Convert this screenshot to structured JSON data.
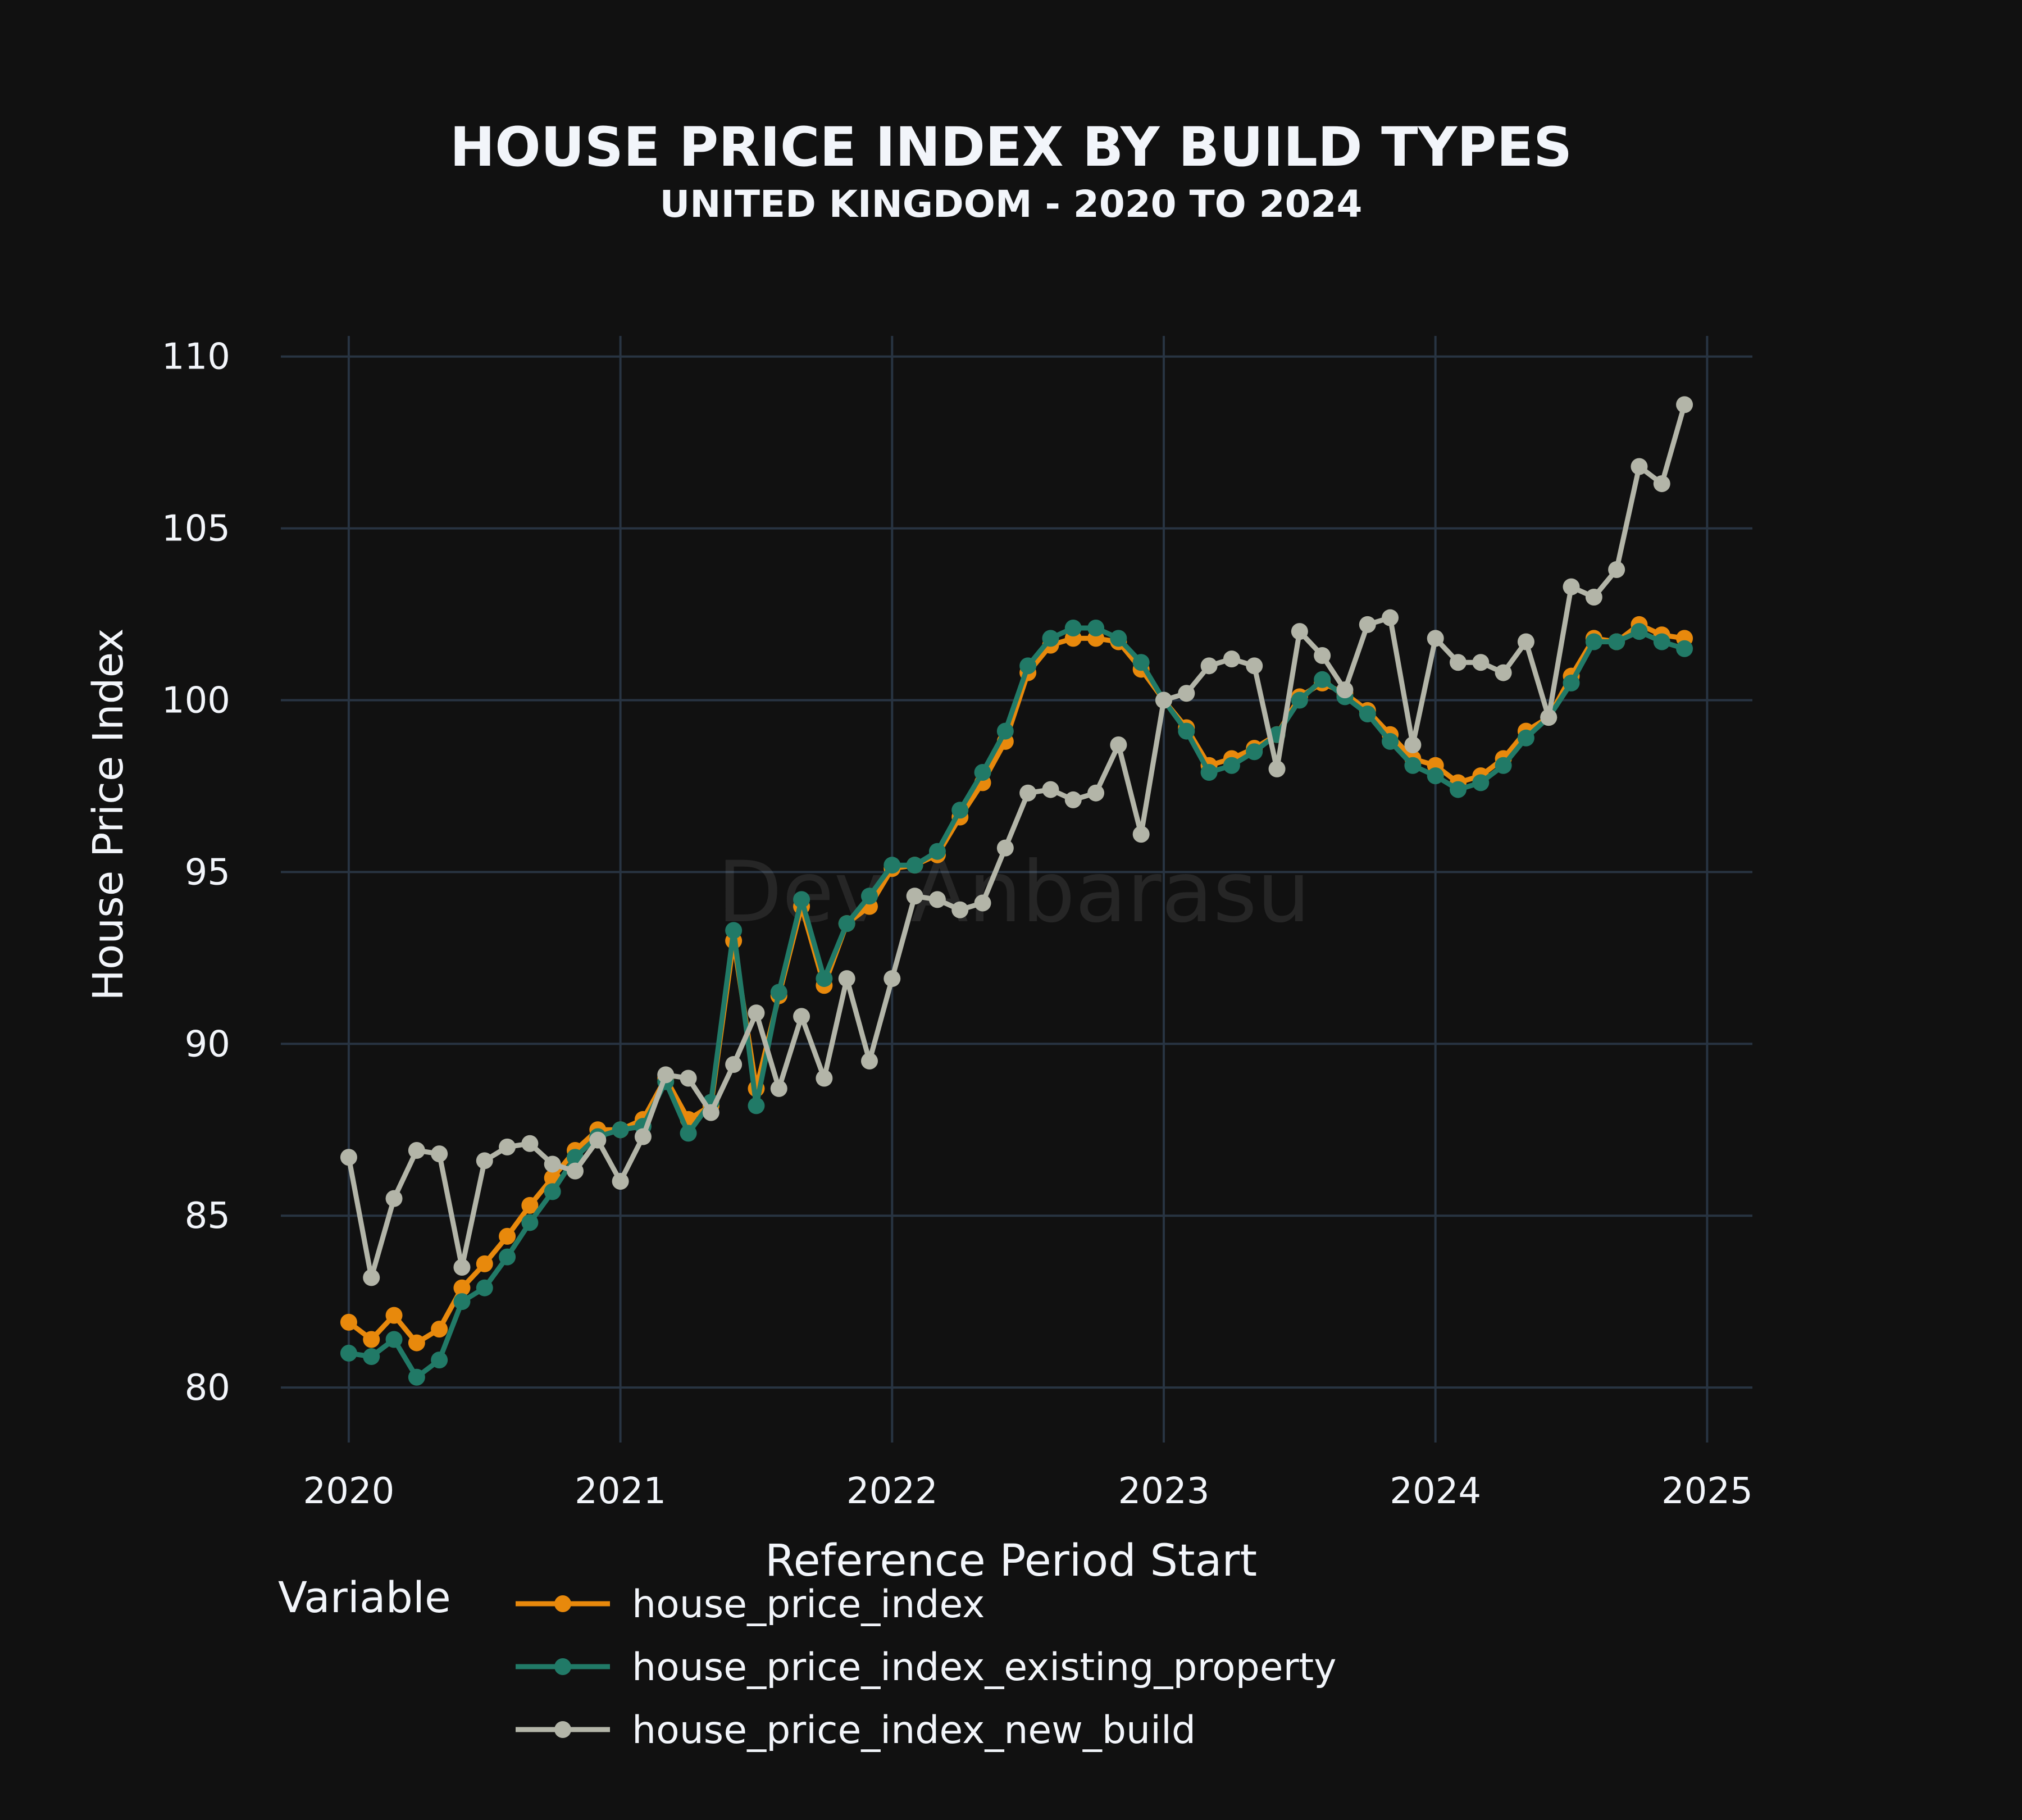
{
  "chart_data": {
    "type": "line",
    "title": "HOUSE PRICE INDEX BY BUILD TYPES",
    "subtitle": "UNITED KINGDOM - 2020 TO 2024",
    "xlabel": "Reference Period Start",
    "ylabel": "House Price Index",
    "xlim": [
      "2019-10",
      "2025-03"
    ],
    "ylim": [
      78.4,
      110.6
    ],
    "x_ticks": [
      "2020",
      "2021",
      "2022",
      "2023",
      "2024",
      "2025"
    ],
    "y_ticks": [
      80,
      85,
      90,
      95,
      100,
      105,
      110
    ],
    "grid": true,
    "legend_title": "Variable",
    "legend_position": "bottom",
    "watermark": "Dev Anbarasu",
    "x": [
      "2020-01",
      "2020-02",
      "2020-03",
      "2020-04",
      "2020-05",
      "2020-06",
      "2020-07",
      "2020-08",
      "2020-09",
      "2020-10",
      "2020-11",
      "2020-12",
      "2021-01",
      "2021-02",
      "2021-03",
      "2021-04",
      "2021-05",
      "2021-06",
      "2021-07",
      "2021-08",
      "2021-09",
      "2021-10",
      "2021-11",
      "2021-12",
      "2022-01",
      "2022-02",
      "2022-03",
      "2022-04",
      "2022-05",
      "2022-06",
      "2022-07",
      "2022-08",
      "2022-09",
      "2022-10",
      "2022-11",
      "2022-12",
      "2023-01",
      "2023-02",
      "2023-03",
      "2023-04",
      "2023-05",
      "2023-06",
      "2023-07",
      "2023-08",
      "2023-09",
      "2023-10",
      "2023-11",
      "2023-12",
      "2024-01",
      "2024-02",
      "2024-03",
      "2024-04",
      "2024-05",
      "2024-06",
      "2024-07",
      "2024-08",
      "2024-09",
      "2024-10",
      "2024-11",
      "2024-12"
    ],
    "series": [
      {
        "name": "house_price_index",
        "color": "#e8890c",
        "values": [
          81.9,
          81.4,
          82.1,
          81.3,
          81.7,
          82.9,
          83.6,
          84.4,
          85.3,
          86.1,
          86.9,
          87.5,
          87.5,
          87.8,
          89.0,
          87.8,
          88.2,
          93.0,
          88.7,
          91.4,
          94.0,
          91.7,
          93.5,
          94.0,
          95.1,
          95.2,
          95.5,
          96.6,
          97.6,
          98.8,
          100.8,
          101.6,
          101.8,
          101.8,
          101.7,
          100.9,
          100.0,
          99.2,
          98.1,
          98.3,
          98.6,
          99.0,
          100.1,
          100.5,
          100.2,
          99.7,
          99.0,
          98.3,
          98.1,
          97.6,
          97.8,
          98.3,
          99.1,
          99.5,
          100.7,
          101.8,
          101.7,
          102.2,
          101.9,
          101.8
        ]
      },
      {
        "name": "house_price_index_existing_property",
        "color": "#217a67",
        "values": [
          81.0,
          80.9,
          81.4,
          80.3,
          80.8,
          82.5,
          82.9,
          83.8,
          84.8,
          85.7,
          86.7,
          87.3,
          87.5,
          87.6,
          88.9,
          87.4,
          88.3,
          93.3,
          88.2,
          91.5,
          94.2,
          91.9,
          93.5,
          94.3,
          95.2,
          95.2,
          95.6,
          96.8,
          97.9,
          99.1,
          101.0,
          101.8,
          102.1,
          102.1,
          101.8,
          101.1,
          100.0,
          99.1,
          97.9,
          98.1,
          98.5,
          99.0,
          100.0,
          100.6,
          100.1,
          99.6,
          98.8,
          98.1,
          97.8,
          97.4,
          97.6,
          98.1,
          98.9,
          99.5,
          100.5,
          101.7,
          101.7,
          102.0,
          101.7,
          101.5
        ]
      },
      {
        "name": "house_price_index_new_build",
        "color": "#b3b5a8",
        "values": [
          86.7,
          83.2,
          85.5,
          86.9,
          86.8,
          83.5,
          86.6,
          87.0,
          87.1,
          86.5,
          86.3,
          87.2,
          86.0,
          87.3,
          89.1,
          89.0,
          88.0,
          89.4,
          90.9,
          88.7,
          90.8,
          89.0,
          91.9,
          89.5,
          91.9,
          94.3,
          94.2,
          93.9,
          94.1,
          95.7,
          97.3,
          97.4,
          97.1,
          97.3,
          98.7,
          96.1,
          100.0,
          100.2,
          101.0,
          101.2,
          101.0,
          98.0,
          102.0,
          101.3,
          100.3,
          102.2,
          102.4,
          98.7,
          101.8,
          101.1,
          101.1,
          100.8,
          101.7,
          99.5,
          103.3,
          103.0,
          103.8,
          106.8,
          106.3,
          108.6
        ]
      }
    ]
  }
}
